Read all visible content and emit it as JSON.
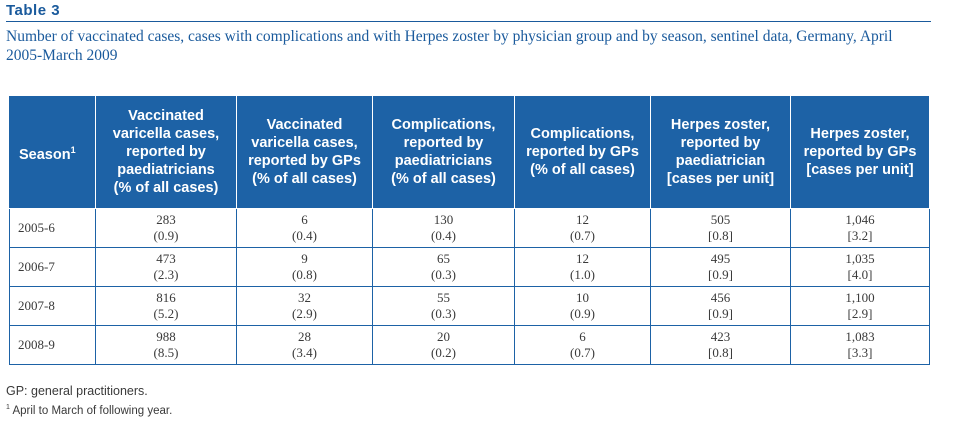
{
  "table_label": "Table 3",
  "caption": "Number of vaccinated cases, cases with complications and with Herpes zoster by physician group and by season, sentinel data, Germany, April 2005-March 2009",
  "headers": {
    "season": "Season",
    "season_sup": "1",
    "c1": [
      "Vaccinated",
      "varicella cases,",
      "reported by",
      "paediatricians",
      "(% of all cases)"
    ],
    "c2": [
      "Vaccinated",
      "varicella cases,",
      "reported by GPs",
      "(% of all cases)"
    ],
    "c3": [
      "Complications,",
      "reported by",
      "paediatricians",
      "(% of all cases)"
    ],
    "c4": [
      "Complications,",
      "reported by GPs",
      "(% of all cases)"
    ],
    "c5": [
      "Herpes zoster,",
      "reported by",
      "paediatrician",
      "[cases per unit]"
    ],
    "c6": [
      "Herpes zoster,",
      "reported by GPs",
      "[cases per unit]"
    ]
  },
  "rows": [
    {
      "season": "2005-6",
      "cells": [
        [
          "283",
          "(0.9)"
        ],
        [
          "6",
          "(0.4)"
        ],
        [
          "130",
          "(0.4)"
        ],
        [
          "12",
          "(0.7)"
        ],
        [
          "505",
          "[0.8]"
        ],
        [
          "1,046",
          "[3.2]"
        ]
      ]
    },
    {
      "season": "2006-7",
      "cells": [
        [
          "473",
          "(2.3)"
        ],
        [
          "9",
          "(0.8)"
        ],
        [
          "65",
          "(0.3)"
        ],
        [
          "12",
          "(1.0)"
        ],
        [
          "495",
          "[0.9]"
        ],
        [
          "1,035",
          "[4.0]"
        ]
      ]
    },
    {
      "season": "2007-8",
      "cells": [
        [
          "816",
          "(5.2)"
        ],
        [
          "32",
          "(2.9)"
        ],
        [
          "55",
          "(0.3)"
        ],
        [
          "10",
          "(0.9)"
        ],
        [
          "456",
          "[0.9]"
        ],
        [
          "1,100",
          "[2.9]"
        ]
      ]
    },
    {
      "season": "2008-9",
      "cells": [
        [
          "988",
          "(8.5)"
        ],
        [
          "28",
          "(3.4)"
        ],
        [
          "20",
          "(0.2)"
        ],
        [
          "6",
          "(0.7)"
        ],
        [
          "423",
          "[0.8]"
        ],
        [
          "1,083",
          "[3.3]"
        ]
      ]
    }
  ],
  "footnotes": {
    "gp": "GP: general practitioners.",
    "fn1_sup": "1",
    "fn1_text": " April to March of following year."
  },
  "colors": {
    "accent": "#1d62a6",
    "title": "#1a5a9c"
  }
}
